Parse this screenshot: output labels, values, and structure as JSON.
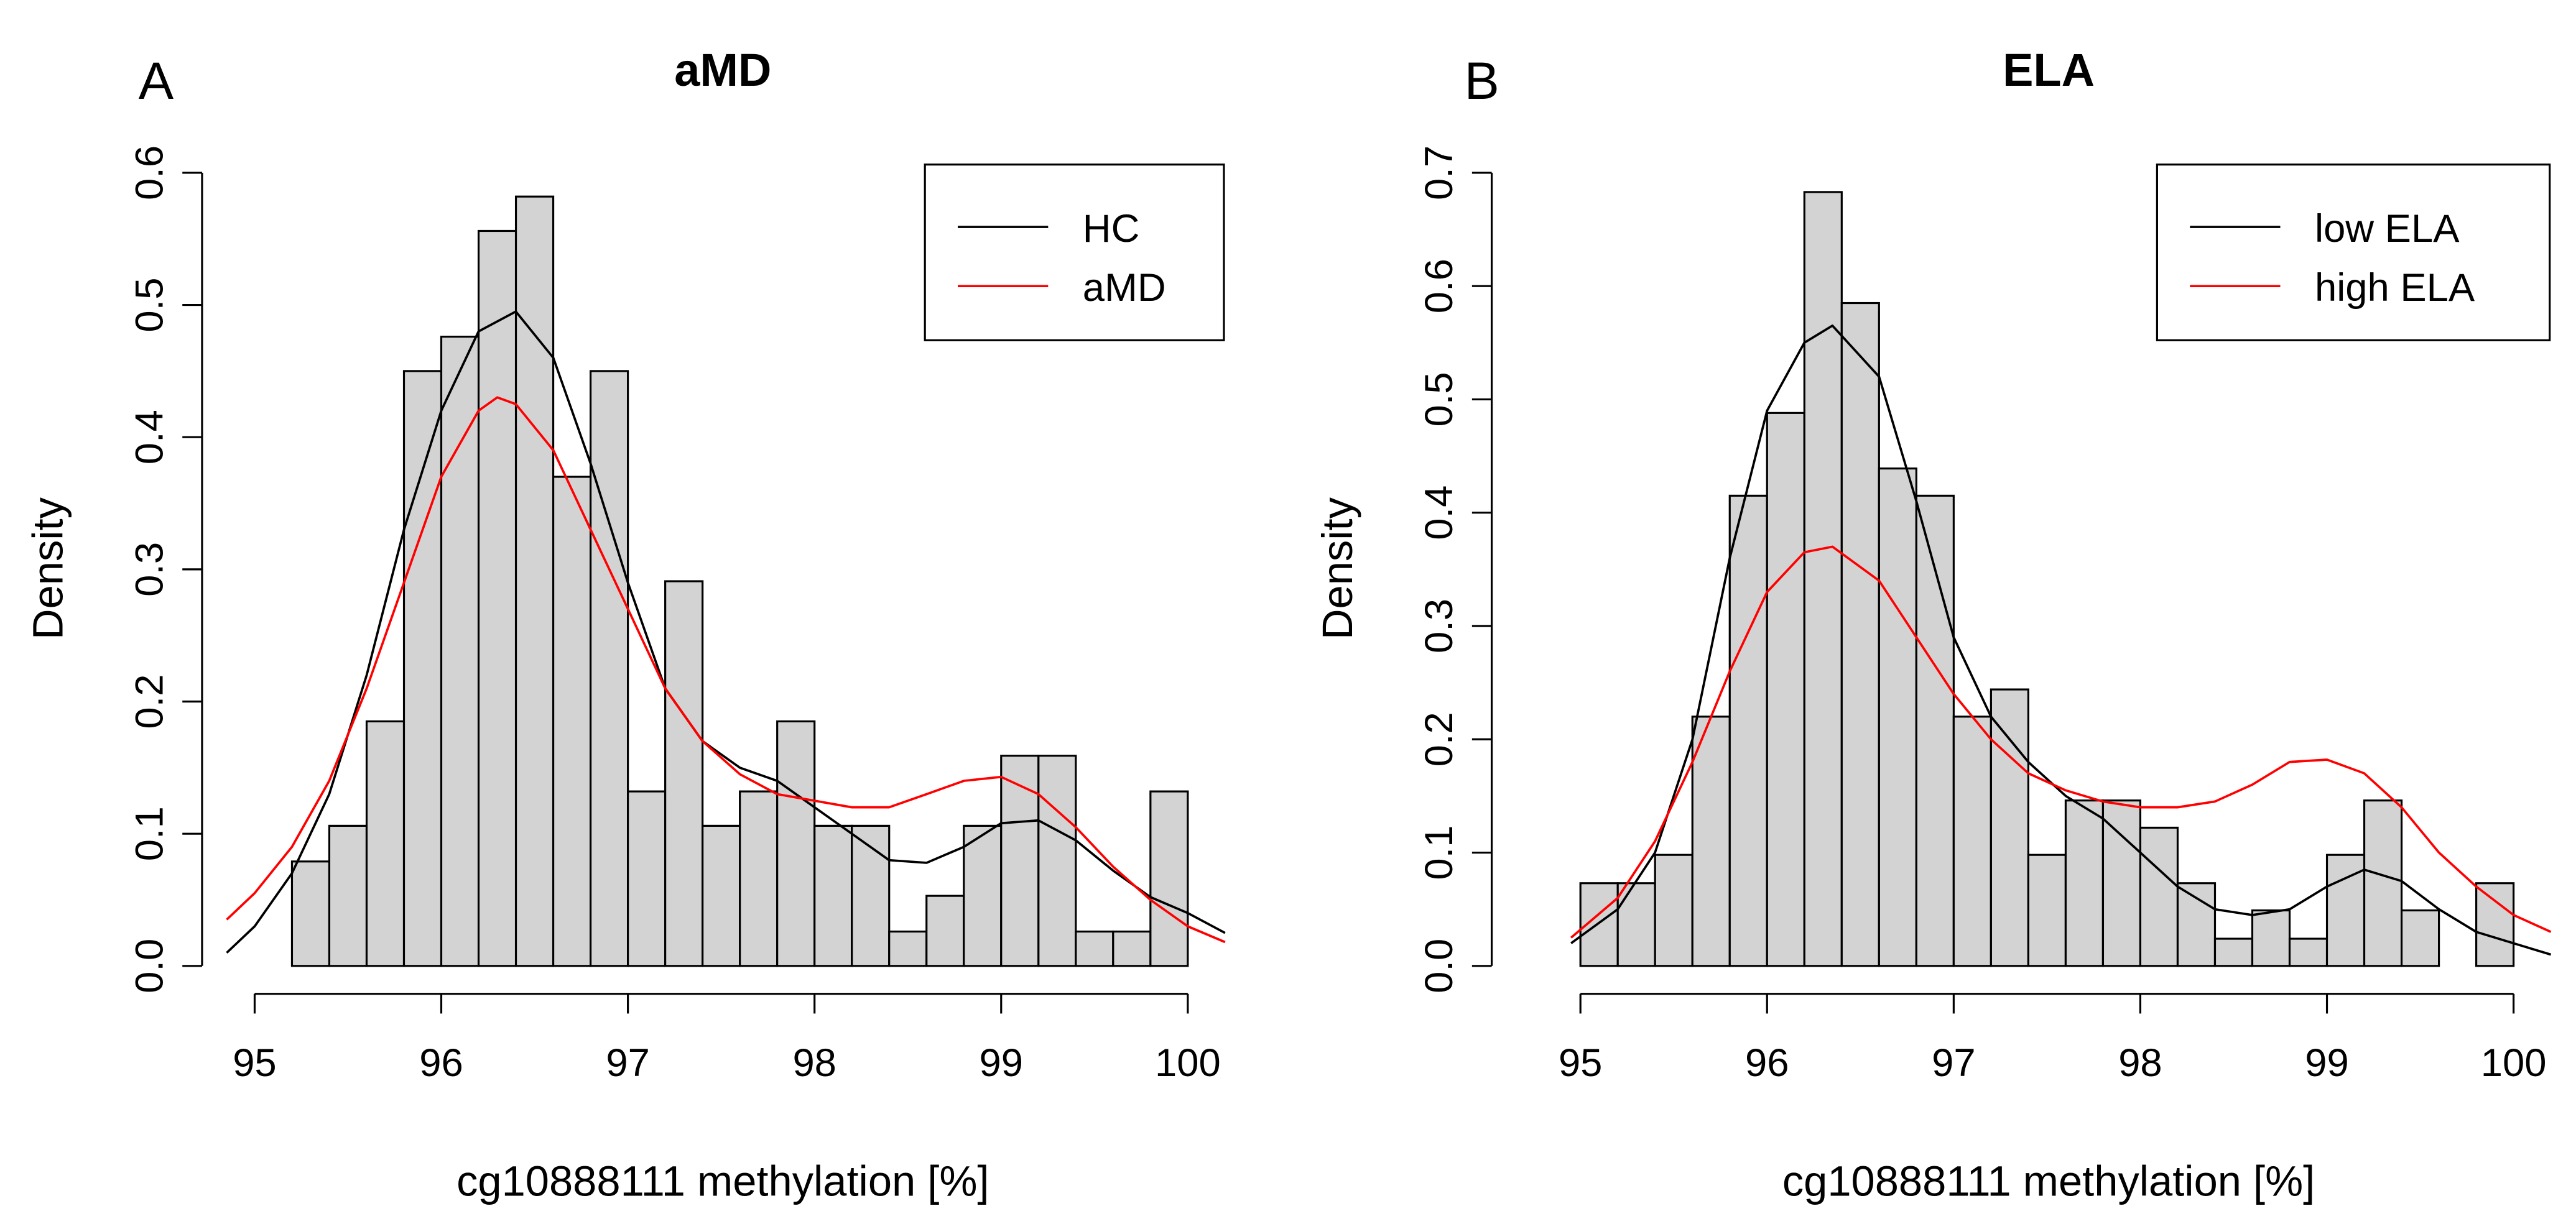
{
  "chart_data": [
    {
      "type": "bar",
      "panel_label": "A",
      "title": "aMD",
      "xlabel": "cg10888111 methylation [%]",
      "ylabel": "Density",
      "xlim": [
        94.85,
        100.2
      ],
      "ylim": [
        0,
        0.6
      ],
      "xticks": [
        "95",
        "96",
        "97",
        "98",
        "99",
        "100"
      ],
      "yticks": [
        "0.0",
        "0.1",
        "0.2",
        "0.3",
        "0.4",
        "0.5",
        "0.6"
      ],
      "bin_start": 95.2,
      "bin_width": 0.2,
      "values": [
        0.079,
        0.106,
        0.185,
        0.45,
        0.476,
        0.556,
        0.582,
        0.37,
        0.45,
        0.132,
        0.291,
        0.106,
        0.132,
        0.185,
        0.106,
        0.106,
        0.026,
        0.053,
        0.106,
        0.159,
        0.159,
        0.026,
        0.026,
        0.132
      ],
      "legend": {
        "position": "top-right",
        "entries": [
          "HC",
          "aMD"
        ]
      },
      "series": [
        {
          "name": "HC",
          "color": "#000000",
          "x": [
            94.85,
            95.0,
            95.2,
            95.4,
            95.6,
            95.8,
            96.0,
            96.2,
            96.4,
            96.6,
            96.8,
            97.0,
            97.2,
            97.4,
            97.6,
            97.8,
            98.0,
            98.2,
            98.4,
            98.6,
            98.8,
            99.0,
            99.2,
            99.4,
            99.6,
            99.8,
            100.0,
            100.2
          ],
          "y": [
            0.01,
            0.03,
            0.07,
            0.13,
            0.22,
            0.33,
            0.42,
            0.48,
            0.495,
            0.46,
            0.38,
            0.29,
            0.21,
            0.17,
            0.15,
            0.14,
            0.12,
            0.1,
            0.08,
            0.078,
            0.09,
            0.108,
            0.11,
            0.095,
            0.072,
            0.052,
            0.04,
            0.025
          ]
        },
        {
          "name": "aMD",
          "color": "#ff0000",
          "x": [
            94.85,
            95.0,
            95.2,
            95.4,
            95.6,
            95.8,
            96.0,
            96.2,
            96.3,
            96.4,
            96.6,
            96.8,
            97.0,
            97.2,
            97.4,
            97.6,
            97.8,
            98.0,
            98.2,
            98.4,
            98.6,
            98.8,
            99.0,
            99.2,
            99.4,
            99.6,
            99.8,
            100.0,
            100.2
          ],
          "y": [
            0.035,
            0.055,
            0.09,
            0.14,
            0.21,
            0.29,
            0.37,
            0.42,
            0.43,
            0.425,
            0.39,
            0.33,
            0.27,
            0.21,
            0.17,
            0.145,
            0.13,
            0.125,
            0.12,
            0.12,
            0.13,
            0.14,
            0.143,
            0.13,
            0.105,
            0.075,
            0.05,
            0.03,
            0.018
          ]
        }
      ]
    },
    {
      "type": "bar",
      "panel_label": "B",
      "title": "ELA",
      "xlabel": "cg10888111 methylation [%]",
      "ylabel": "Density",
      "xlim": [
        94.95,
        100.2
      ],
      "ylim": [
        0,
        0.7
      ],
      "xticks": [
        "95",
        "96",
        "97",
        "98",
        "99",
        "100"
      ],
      "yticks": [
        "0.0",
        "0.1",
        "0.2",
        "0.3",
        "0.4",
        "0.5",
        "0.6",
        "0.7"
      ],
      "bin_start": 95.0,
      "bin_width": 0.2,
      "values": [
        0.073,
        0.073,
        0.098,
        0.22,
        0.415,
        0.488,
        0.683,
        0.585,
        0.439,
        0.415,
        0.22,
        0.244,
        0.098,
        0.146,
        0.146,
        0.122,
        0.073,
        0.024,
        0.049,
        0.024,
        0.098,
        0.146,
        0.049,
        0.0,
        0.073
      ],
      "legend": {
        "position": "top-right",
        "entries": [
          "low ELA",
          "high ELA"
        ]
      },
      "series": [
        {
          "name": "low ELA",
          "color": "#000000",
          "x": [
            94.95,
            95.2,
            95.4,
            95.6,
            95.8,
            96.0,
            96.2,
            96.35,
            96.6,
            96.8,
            97.0,
            97.2,
            97.4,
            97.6,
            97.8,
            98.0,
            98.2,
            98.4,
            98.6,
            98.8,
            99.0,
            99.2,
            99.4,
            99.6,
            99.8,
            100.0,
            100.2
          ],
          "y": [
            0.02,
            0.05,
            0.1,
            0.2,
            0.36,
            0.49,
            0.55,
            0.565,
            0.52,
            0.41,
            0.29,
            0.22,
            0.18,
            0.15,
            0.13,
            0.1,
            0.07,
            0.05,
            0.045,
            0.05,
            0.07,
            0.085,
            0.075,
            0.05,
            0.03,
            0.02,
            0.01
          ]
        },
        {
          "name": "high ELA",
          "color": "#ff0000",
          "x": [
            94.95,
            95.2,
            95.4,
            95.6,
            95.8,
            96.0,
            96.2,
            96.35,
            96.6,
            96.8,
            97.0,
            97.2,
            97.4,
            97.6,
            97.8,
            98.0,
            98.2,
            98.4,
            98.6,
            98.8,
            99.0,
            99.2,
            99.4,
            99.6,
            99.8,
            100.0,
            100.2
          ],
          "y": [
            0.025,
            0.06,
            0.11,
            0.18,
            0.26,
            0.33,
            0.365,
            0.37,
            0.34,
            0.29,
            0.24,
            0.2,
            0.17,
            0.155,
            0.145,
            0.14,
            0.14,
            0.145,
            0.16,
            0.18,
            0.182,
            0.17,
            0.14,
            0.1,
            0.07,
            0.045,
            0.03
          ]
        }
      ]
    }
  ]
}
